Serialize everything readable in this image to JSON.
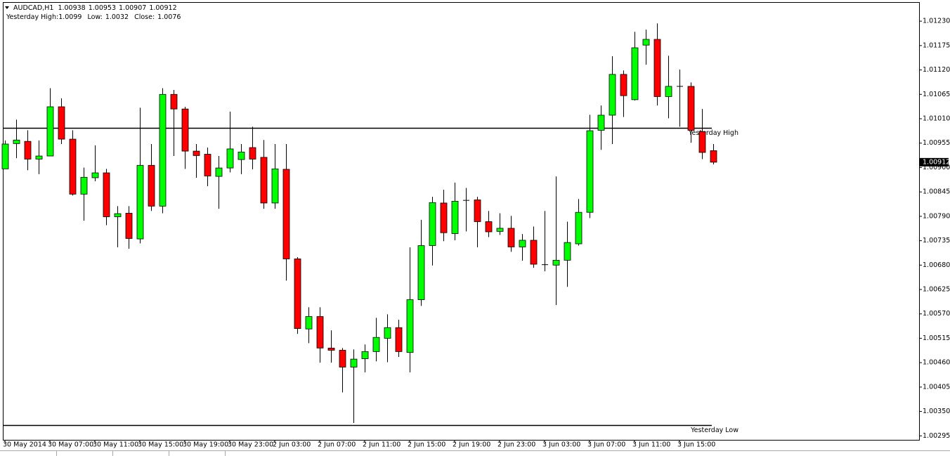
{
  "chart_data": {
    "type": "candlestick",
    "symbol": "AUDCAD,H1",
    "categories": [
      "30 May 2014",
      null,
      null,
      null,
      "30 May 07:00",
      null,
      null,
      null,
      "30 May 11:00",
      null,
      null,
      null,
      "30 May 15:00",
      null,
      null,
      null,
      "30 May 19:00",
      null,
      null,
      null,
      "30 May 23:00",
      null,
      null,
      null,
      "2 Jun 03:00",
      null,
      null,
      null,
      "2 Jun 07:00",
      null,
      null,
      null,
      "2 Jun 11:00",
      null,
      null,
      null,
      "2 Jun 15:00",
      null,
      null,
      null,
      "2 Jun 19:00",
      null,
      null,
      null,
      "2 Jun 23:00",
      null,
      null,
      null,
      "3 Jun 03:00",
      null,
      null,
      null,
      "3 Jun 07:00",
      null,
      null,
      null,
      "3 Jun 11:00",
      null,
      null,
      null,
      "3 Jun 15:00",
      null,
      null,
      null
    ],
    "open": [
      1.00897,
      1.00954,
      1.00959,
      1.00919,
      1.00926,
      1.01037,
      1.00964,
      1.0084,
      1.00877,
      1.00888,
      1.00789,
      1.00797,
      1.00739,
      1.00905,
      1.00813,
      1.01065,
      1.01032,
      1.00937,
      1.0093,
      1.0088,
      1.00899,
      1.00918,
      1.00945,
      1.00923,
      1.0082,
      1.00896,
      1.00694,
      1.00536,
      1.00564,
      1.00493,
      1.00488,
      1.0045,
      1.00469,
      1.00485,
      1.00515,
      1.00539,
      1.00483,
      1.00602,
      1.00724,
      1.0082,
      1.00751,
      1.00826,
      1.00827,
      1.00778,
      1.00756,
      1.00763,
      1.00721,
      1.00736,
      1.00681,
      1.0068,
      1.00691,
      1.00728,
      1.00799,
      1.00984,
      1.01018,
      1.0111,
      1.01053,
      1.01176,
      1.01189,
      1.0106,
      1.01083,
      1.01083,
      1.00981,
      1.00938
    ],
    "high": [
      1.00961,
      1.01008,
      1.00984,
      1.00961,
      1.01079,
      1.01056,
      1.00984,
      1.009,
      1.0095,
      1.00897,
      1.00813,
      1.00813,
      1.01035,
      1.00953,
      1.01079,
      1.01075,
      1.01037,
      1.00953,
      1.00945,
      1.00926,
      1.01026,
      1.00953,
      1.00992,
      1.00962,
      1.00953,
      1.00953,
      1.00698,
      1.00585,
      1.00585,
      1.00533,
      1.00493,
      1.0049,
      1.00501,
      1.00561,
      1.00569,
      1.00557,
      1.0072,
      1.00782,
      1.00834,
      1.0085,
      1.00866,
      1.00854,
      1.00834,
      1.00802,
      1.00797,
      1.00791,
      1.0075,
      1.00767,
      1.00802,
      1.0088,
      1.00778,
      1.00829,
      1.01019,
      1.0104,
      1.01151,
      1.01119,
      1.01206,
      1.01211,
      1.01225,
      1.01152,
      1.01121,
      1.01092,
      1.01032,
      1.00953
    ],
    "low": [
      1.00897,
      1.00921,
      1.00894,
      1.00885,
      1.00926,
      1.00953,
      1.00837,
      1.0078,
      1.00869,
      1.0077,
      1.0072,
      1.00717,
      1.00729,
      1.00802,
      1.00797,
      1.00926,
      1.00897,
      1.00877,
      1.00858,
      1.00807,
      1.00889,
      1.00885,
      1.00896,
      1.00807,
      1.00807,
      1.00645,
      1.00525,
      1.00504,
      1.0046,
      1.0046,
      1.00393,
      1.00324,
      1.00438,
      1.00463,
      1.00461,
      1.00473,
      1.00438,
      1.00588,
      1.00679,
      1.00734,
      1.00736,
      1.00756,
      1.0072,
      1.00743,
      1.00748,
      1.0071,
      1.0069,
      1.00674,
      1.00666,
      1.0059,
      1.00631,
      1.00724,
      1.00786,
      1.0094,
      1.00953,
      1.01014,
      1.01051,
      1.01132,
      1.0104,
      1.01011,
      1.00992,
      1.00956,
      1.00919,
      1.00907
    ],
    "close": [
      1.00953,
      1.00962,
      1.00919,
      1.00926,
      1.01037,
      1.00964,
      1.0084,
      1.00878,
      1.00888,
      1.00789,
      1.00796,
      1.0074,
      1.00905,
      1.00813,
      1.01065,
      1.01032,
      1.00937,
      1.00927,
      1.00881,
      1.00899,
      1.00942,
      1.00935,
      1.00919,
      1.0082,
      1.00897,
      1.00694,
      1.00537,
      1.00564,
      1.00493,
      1.00488,
      1.0045,
      1.00468,
      1.00485,
      1.00517,
      1.00539,
      1.00485,
      1.00602,
      1.00724,
      1.00821,
      1.00753,
      1.00824,
      1.00826,
      1.00778,
      1.00755,
      1.00763,
      1.00721,
      1.00736,
      1.00682,
      1.00681,
      1.00691,
      1.00731,
      1.00799,
      1.00983,
      1.01018,
      1.0111,
      1.01062,
      1.0117,
      1.01189,
      1.0106,
      1.01083,
      1.01083,
      1.00984,
      1.00934,
      1.00912
    ],
    "up_color": "#00ff00",
    "down_color": "#ff0000",
    "border_color": "#000000",
    "ylim": [
      1.00286,
      1.01273
    ],
    "yticks": [
      {
        "value": 1.0123,
        "label": "1.01230"
      },
      1.01175,
      {
        "value": 1.0112,
        "label": "1.01120"
      },
      1.01065,
      {
        "value": 1.0101,
        "label": "1.01010"
      },
      1.00955,
      {
        "value": 1.009,
        "label": "1.00900"
      },
      1.00845,
      {
        "value": 1.0079,
        "label": "1.00790"
      },
      1.00735,
      {
        "value": 1.0068,
        "label": "1.00680"
      },
      1.00625,
      {
        "value": 1.0057,
        "label": "1.00570"
      },
      1.00515,
      {
        "value": 1.0046,
        "label": "1.00460"
      },
      1.00405,
      {
        "value": 1.0035,
        "label": "1.00350"
      },
      1.00295
    ],
    "levels": [
      {
        "name": "Yesterday High",
        "value": 1.0099
      },
      {
        "name": "Yesterday Low",
        "value": 1.0032
      }
    ],
    "info": {
      "high_label": "Yesterday High:",
      "low_label": "Low:",
      "close_label": "Close:",
      "close": 1.0076
    }
  }
}
